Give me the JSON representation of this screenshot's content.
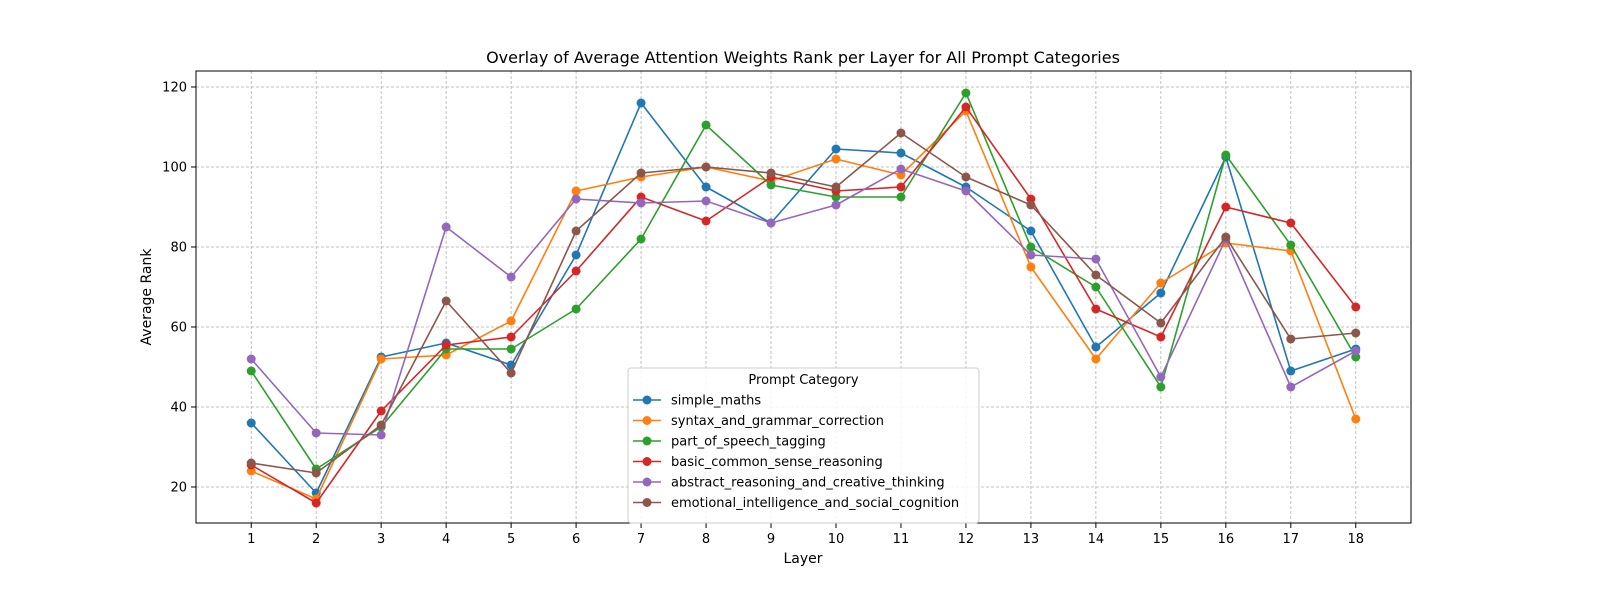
{
  "chart_data": {
    "type": "line",
    "title": "Overlay of Average Attention Weights Rank per Layer for All Prompt Categories",
    "xlabel": "Layer",
    "ylabel": "Average Rank",
    "x": [
      1,
      2,
      3,
      4,
      5,
      6,
      7,
      8,
      9,
      10,
      11,
      12,
      13,
      14,
      15,
      16,
      17,
      18
    ],
    "xlim": [
      0.15,
      18.85
    ],
    "ylim": [
      11,
      124
    ],
    "yticks": [
      20,
      40,
      60,
      80,
      100,
      120
    ],
    "grid": true,
    "legend": {
      "title": "Prompt Category",
      "placement": "lower-center"
    },
    "series": [
      {
        "name": "simple_maths",
        "color": "#1f77b4",
        "values": [
          36,
          18.5,
          52.5,
          56,
          50.5,
          78,
          116,
          95,
          86,
          104.5,
          103.5,
          95,
          84,
          55,
          68.5,
          102.5,
          49,
          54.5
        ]
      },
      {
        "name": "syntax_and_grammar_correction",
        "color": "#ff7f0e",
        "values": [
          24,
          17,
          52,
          53,
          61.5,
          94,
          97.5,
          100,
          96.5,
          102,
          98,
          114,
          75,
          52,
          71,
          81,
          79,
          37
        ]
      },
      {
        "name": "part_of_speech_tagging",
        "color": "#2ca02c",
        "values": [
          49,
          24.5,
          35,
          54.5,
          54.5,
          64.5,
          82,
          110.5,
          95.5,
          92.5,
          92.5,
          118.5,
          80,
          70,
          45,
          103,
          80.5,
          52.5
        ]
      },
      {
        "name": "basic_common_sense_reasoning",
        "color": "#d62728",
        "values": [
          25.5,
          16,
          39,
          55.5,
          57.5,
          74,
          92.5,
          86.5,
          97.5,
          94,
          95,
          115,
          92,
          64.5,
          57.5,
          90,
          86,
          65
        ]
      },
      {
        "name": "abstract_reasoning_and_creative_thinking",
        "color": "#9467bd",
        "values": [
          52,
          33.5,
          33,
          85,
          72.5,
          92,
          91,
          91.5,
          86,
          90.5,
          99.5,
          94,
          78,
          77,
          47.5,
          82,
          45,
          54
        ]
      },
      {
        "name": "emotional_intelligence_and_social_cognition",
        "color": "#8c564b",
        "values": [
          26,
          23.5,
          35.5,
          66.5,
          48.5,
          84,
          98.5,
          100,
          98.5,
          95,
          108.5,
          97.5,
          90.5,
          73,
          61,
          82.5,
          57,
          58.5
        ]
      }
    ]
  }
}
